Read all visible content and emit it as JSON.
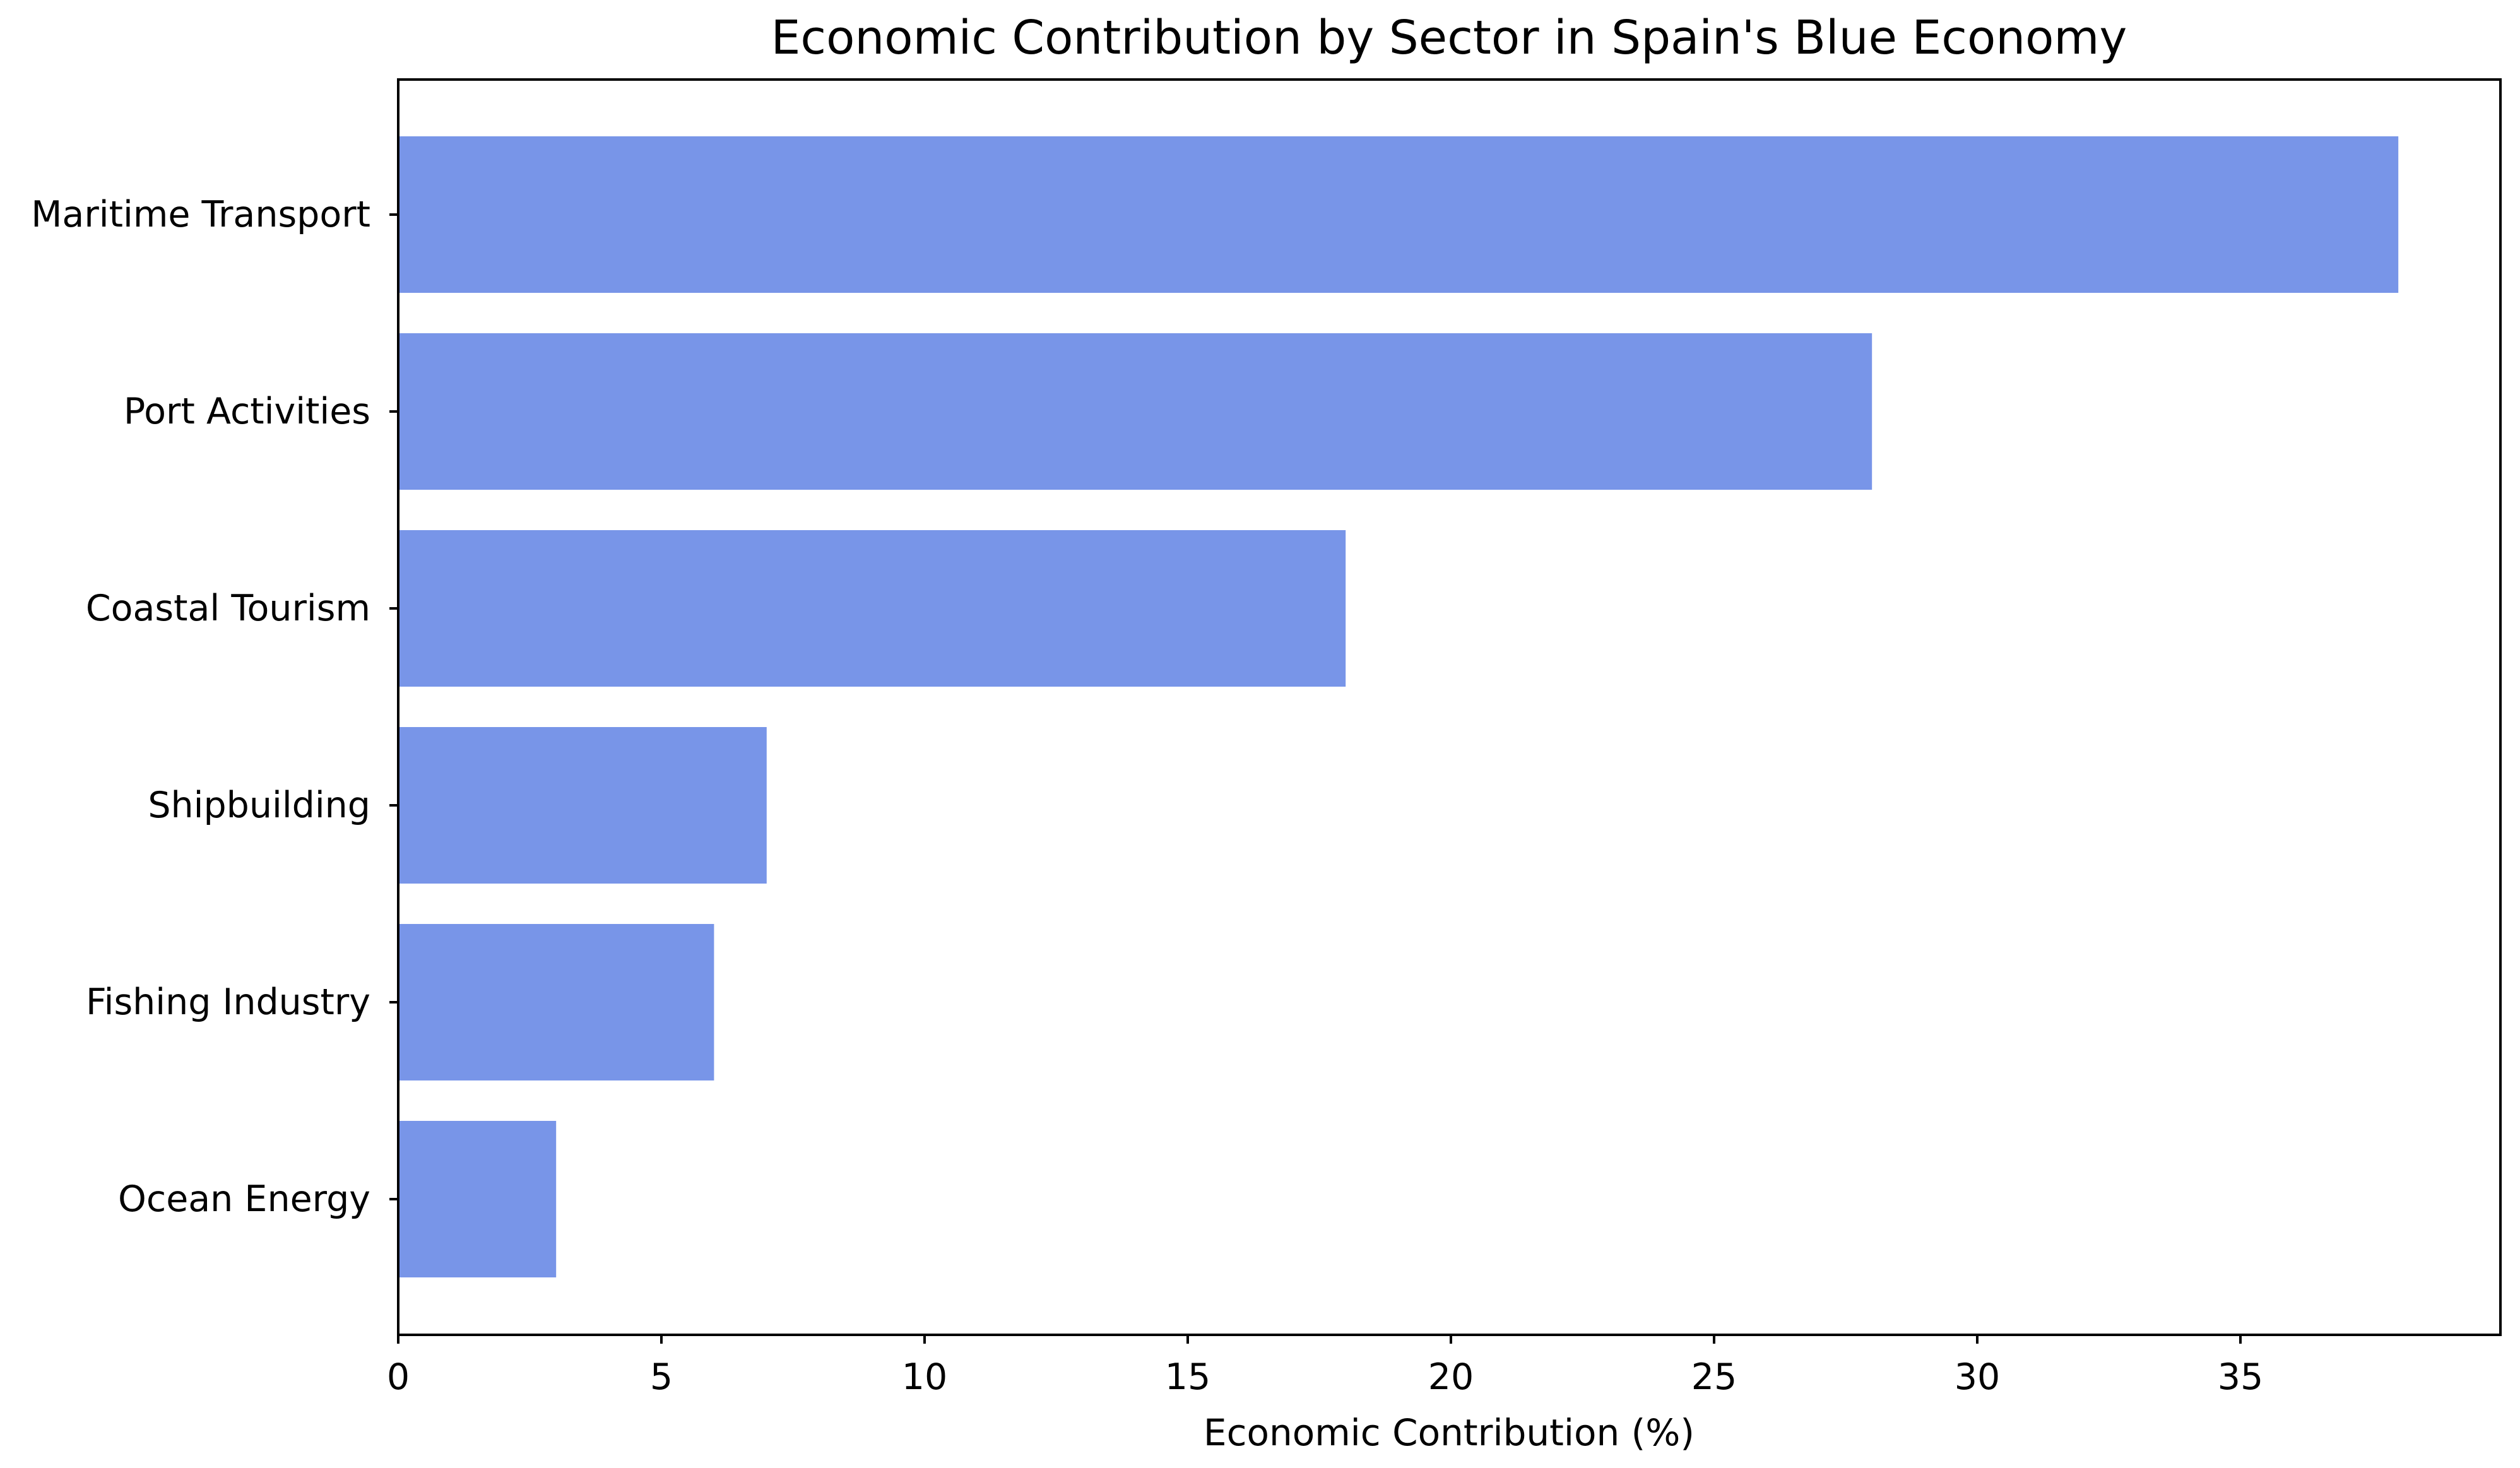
{
  "chart_data": {
    "type": "bar",
    "orientation": "horizontal",
    "title": "Economic Contribution by Sector in Spain's Blue Economy",
    "xlabel": "Economic Contribution (%)",
    "ylabel": "",
    "categories": [
      "Maritime Transport",
      "Port Activities",
      "Coastal Tourism",
      "Shipbuilding",
      "Fishing Industry",
      "Ocean Energy"
    ],
    "values": [
      38,
      28,
      18,
      7,
      6,
      3
    ],
    "xlim": [
      0,
      40
    ],
    "xticks": [
      0,
      5,
      10,
      15,
      20,
      25,
      30,
      35
    ],
    "grid": false,
    "bar_color": "#7895e8"
  }
}
